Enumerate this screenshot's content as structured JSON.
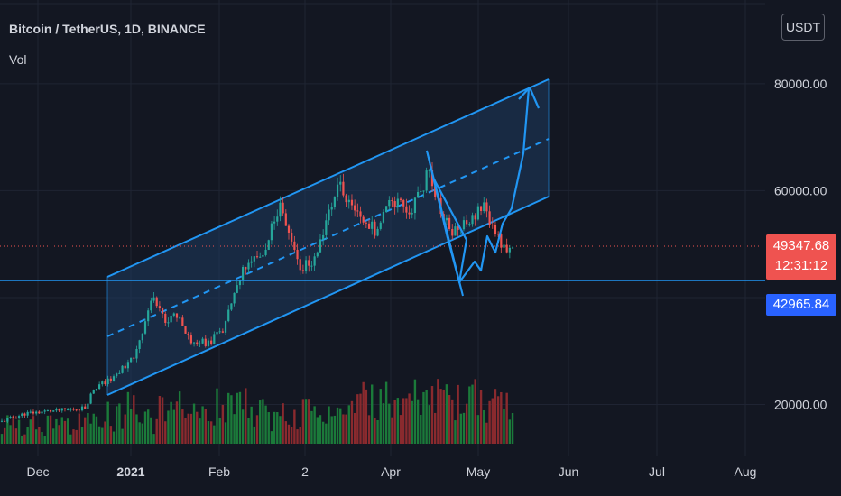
{
  "header": {
    "title": "Bitcoin / TetherUS, 1D, BINANCE",
    "volume_label": "Vol",
    "currency_button": "USDT"
  },
  "colors": {
    "background": "#131722",
    "grid": "#1f2433",
    "candle_up": "#26a69a",
    "candle_down": "#ef5350",
    "volume_up": "#1b7a3a",
    "volume_down": "#8a2a2e",
    "drawing": "#2196f3",
    "channel_fill": "#1e3a5f",
    "price_label_bg": "#ef5350",
    "level_label_bg": "#2962ff"
  },
  "price_label": {
    "price": "49347.68",
    "countdown": "12:31:12"
  },
  "level_label": {
    "price": "42965.84"
  },
  "chart_data": {
    "type": "candlestick",
    "symbol": "Bitcoin / TetherUS",
    "interval": "1D",
    "exchange": "BINANCE",
    "y_axis": {
      "ticks": [
        {
          "value": 20000,
          "label": "20000.00"
        },
        {
          "value": 60000,
          "label": "60000.00"
        },
        {
          "value": 80000,
          "label": "80000.00"
        }
      ]
    },
    "x_axis": {
      "ticks": [
        {
          "label": "Dec",
          "bold": false
        },
        {
          "label": "2021",
          "bold": true
        },
        {
          "label": "Feb",
          "bold": false
        },
        {
          "label": "2",
          "bold": false
        },
        {
          "label": "Apr",
          "bold": false
        },
        {
          "label": "May",
          "bold": false
        },
        {
          "label": "Jun",
          "bold": false
        },
        {
          "label": "Jul",
          "bold": false
        },
        {
          "label": "Aug",
          "bold": false
        }
      ]
    },
    "series": [
      {
        "date_range": [
          "2020-11-16",
          "2021-05-13"
        ],
        "close_path": [
          [
            "2020-11-16",
            16800
          ],
          [
            "2020-11-24",
            18300
          ],
          [
            "2020-12-01",
            18700
          ],
          [
            "2020-12-07",
            18900
          ],
          [
            "2020-12-15",
            19400
          ],
          [
            "2020-12-18",
            23000
          ],
          [
            "2020-12-25",
            25000
          ],
          [
            "2021-01-01",
            29000
          ],
          [
            "2021-01-08",
            40500
          ],
          [
            "2021-01-12",
            35500
          ],
          [
            "2021-01-16",
            37000
          ],
          [
            "2021-01-21",
            32000
          ],
          [
            "2021-01-27",
            31500
          ],
          [
            "2021-02-01",
            34000
          ],
          [
            "2021-02-08",
            45000
          ],
          [
            "2021-02-15",
            48000
          ],
          [
            "2021-02-21",
            57500
          ],
          [
            "2021-02-28",
            45500
          ],
          [
            "2021-03-05",
            47000
          ],
          [
            "2021-03-13",
            61000
          ],
          [
            "2021-03-22",
            55000
          ],
          [
            "2021-03-27",
            52000
          ],
          [
            "2021-03-31",
            58800
          ],
          [
            "2021-04-07",
            56000
          ],
          [
            "2021-04-14",
            63500
          ],
          [
            "2021-04-18",
            56000
          ],
          [
            "2021-04-22",
            52000
          ],
          [
            "2021-05-03",
            57000
          ],
          [
            "2021-05-10",
            49347.68
          ]
        ]
      }
    ],
    "horizontal_level": 42965.84,
    "last_price": 49347.68
  }
}
